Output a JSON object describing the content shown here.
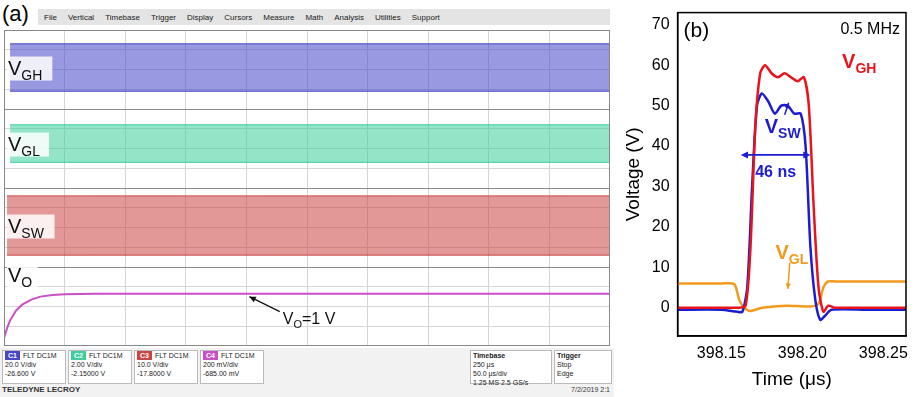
{
  "chart_data": [
    {
      "type": "line",
      "panel_label": "(a)",
      "menu": [
        "File",
        "Vertical",
        "Timebase",
        "Trigger",
        "Display",
        "Cursors",
        "Measure",
        "Math",
        "Analysis",
        "Utilities",
        "Support"
      ],
      "xlim": [
        0,
        10
      ],
      "xticks": [
        0,
        1,
        2,
        3,
        4,
        5,
        6,
        7,
        8,
        9,
        10
      ],
      "ylim": [
        0,
        16
      ],
      "yticks": [
        0,
        1,
        2,
        3,
        4,
        5,
        6,
        7,
        8,
        9,
        10,
        11,
        12,
        13,
        14,
        15,
        16
      ],
      "grid": true,
      "tick_labels": false,
      "series": [
        {
          "name": "VGH",
          "type": "band",
          "color": "#4646c8",
          "x": [
            0.1,
            10
          ],
          "low": [
            12.9,
            12.9
          ],
          "high": [
            15.3,
            15.3
          ]
        },
        {
          "name": "VGL",
          "type": "band",
          "color": "#3ccf9a",
          "x": [
            0.1,
            10
          ],
          "low": [
            9.3,
            9.3
          ],
          "high": [
            11.2,
            11.2
          ]
        },
        {
          "name": "VSW",
          "type": "band",
          "color": "#cc4444",
          "x": [
            0.05,
            10
          ],
          "low": [
            4.6,
            4.6
          ],
          "high": [
            7.6,
            7.6
          ]
        },
        {
          "name": "VO",
          "type": "line",
          "color": "#c84fc8",
          "x": [
            0,
            0.05,
            0.1,
            0.2,
            0.3,
            0.45,
            0.6,
            0.8,
            1.0,
            1.5,
            2,
            10
          ],
          "values": [
            0.4,
            0.9,
            1.3,
            1.8,
            2.1,
            2.35,
            2.5,
            2.58,
            2.62,
            2.65,
            2.65,
            2.65
          ]
        }
      ],
      "annotations": [
        {
          "text": "V",
          "sub": "O",
          "after": "=1 V"
        }
      ],
      "status": {
        "channels": [
          {
            "name": "C1",
            "color": "#4646c8",
            "lines": [
              "FLT DC1M",
              "20.0 V/div",
              "-26.600 V"
            ]
          },
          {
            "name": "C2",
            "color": "#3ccf9a",
            "lines": [
              "FLT DC1M",
              "2.00 V/div",
              "-2.15000 V"
            ]
          },
          {
            "name": "C3",
            "color": "#cc4444",
            "lines": [
              "FLT DC1M",
              "10.0 V/div",
              "-17.8000 V"
            ]
          },
          {
            "name": "C4",
            "color": "#c84fc8",
            "lines": [
              "FLT DC1M",
              "200 mV/div",
              "-685.00 mV"
            ]
          }
        ],
        "timebase": {
          "title": "Timebase",
          "lines": [
            "250 μs",
            "50.0 μs/div",
            "1.25 MS 2.5 GS/s"
          ]
        },
        "trigger": {
          "title": "Trigger",
          "lines": [
            "Stop",
            "Edge"
          ]
        },
        "brand": "TELEDYNE LECROY",
        "date": "7/2/2019 2:1"
      }
    },
    {
      "type": "line",
      "panel_label": "(b)",
      "subtitle": "0.5 MHz",
      "x_label": "Time (μs)",
      "y_label": "Voltage (V)",
      "xlim": [
        398.123,
        398.264
      ],
      "xticks": [
        398.15,
        {
          "value": 398.2,
          "label": "398.20"
        },
        398.25
      ],
      "ylim": [
        -7,
        73
      ],
      "yticks": [
        0,
        10,
        20,
        30,
        40,
        50,
        60,
        70
      ],
      "grid": false,
      "series": [
        {
          "name": "VGH",
          "color": "#e8141c",
          "x": [
            398.123,
            398.15,
            398.16,
            398.165,
            398.168,
            398.171,
            398.174,
            398.177,
            398.181,
            398.185,
            398.189,
            398.193,
            398.197,
            398.201,
            398.204,
            398.207,
            398.21,
            398.213,
            398.216,
            398.22,
            398.24,
            398.264
          ],
          "values": [
            0,
            0,
            0,
            0.5,
            15,
            45,
            58,
            60,
            58,
            57,
            58,
            57,
            56,
            57,
            50,
            25,
            5,
            -1,
            0.5,
            0,
            0,
            0
          ]
        },
        {
          "name": "VSW",
          "color": "#1c1cd0",
          "x": [
            398.123,
            398.15,
            398.16,
            398.163,
            398.166,
            398.169,
            398.172,
            398.175,
            398.179,
            398.183,
            398.187,
            398.191,
            398.195,
            398.199,
            398.202,
            398.205,
            398.208,
            398.211,
            398.214,
            398.218,
            398.24,
            398.264
          ],
          "values": [
            -0.5,
            -0.5,
            -1,
            -1,
            5,
            30,
            50,
            53,
            51,
            48,
            50,
            50,
            48,
            48,
            40,
            15,
            2,
            -3,
            -2,
            -0.5,
            -0.5,
            -0.5
          ]
        },
        {
          "name": "VGL",
          "color": "#f29a1e",
          "x": [
            398.123,
            398.15,
            398.158,
            398.161,
            398.164,
            398.168,
            398.175,
            398.19,
            398.205,
            398.21,
            398.213,
            398.216,
            398.22,
            398.24,
            398.264
          ],
          "values": [
            6,
            6,
            5.8,
            2,
            0,
            -0.8,
            0,
            0.5,
            0.3,
            1,
            5,
            6.5,
            6.5,
            6.5,
            6.5
          ]
        }
      ],
      "annotations": [
        {
          "text": "46 ns",
          "x": [
            398.162,
            398.205
          ]
        }
      ]
    }
  ]
}
